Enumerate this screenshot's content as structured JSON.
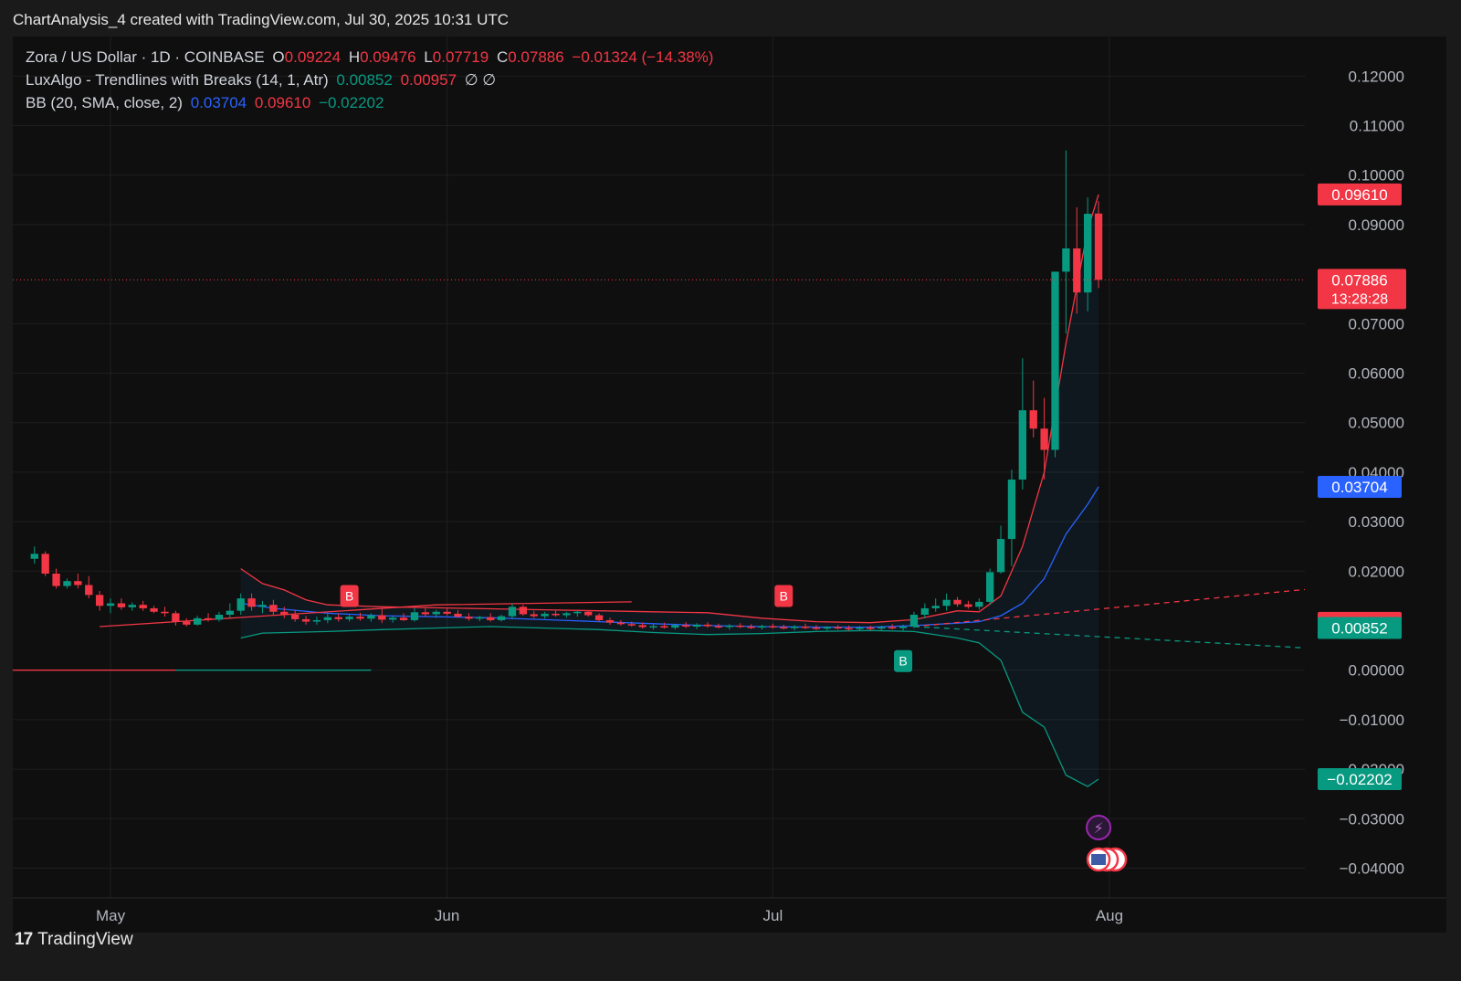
{
  "header": {
    "title": "ChartAnalysis_4 created with TradingView.com, Jul 30, 2025 10:31 UTC"
  },
  "legend": {
    "symbol": "Zora / US Dollar · 1D · COINBASE",
    "o_label": "O",
    "o": "0.09224",
    "h_label": "H",
    "h": "0.09476",
    "l_label": "L",
    "l": "0.07719",
    "c_label": "C",
    "c": "0.07886",
    "change": "−0.01324 (−14.38%)",
    "lux_name": "LuxAlgo - Trendlines with Breaks (14, 1, Atr)",
    "lux_v1": "0.00852",
    "lux_v2": "0.00957",
    "lux_sym": "∅ ∅",
    "bb_name": "BB (20, SMA, close, 2)",
    "bb_basis": "0.03704",
    "bb_upper": "0.09610",
    "bb_lower": "−0.02202"
  },
  "footer": {
    "brand": "TradingView"
  },
  "colors": {
    "up": "#089981",
    "down": "#f23645",
    "basis": "#2962ff",
    "bg": "#0f0f0f"
  },
  "chart_data": {
    "type": "candlestick",
    "y_ticks": [
      "0.12000",
      "0.11000",
      "0.10000",
      "0.09000",
      "0.07000",
      "0.06000",
      "0.05000",
      "0.04000",
      "0.03000",
      "0.02000",
      "0.00000",
      "−0.01000",
      "−0.02000",
      "−0.03000",
      "−0.04000"
    ],
    "y_tick_values": [
      0.12,
      0.11,
      0.1,
      0.09,
      0.07,
      0.06,
      0.05,
      0.04,
      0.03,
      0.02,
      0.0,
      -0.01,
      -0.02,
      -0.03,
      -0.04
    ],
    "ylim": [
      -0.046,
      0.128
    ],
    "x_ticks": [
      "May",
      "Jun",
      "Jul",
      "Aug"
    ],
    "x_tick_days": [
      0,
      31,
      61,
      92
    ],
    "xlim_days": [
      -9,
      110
    ],
    "candles": [
      {
        "d": -7,
        "o": 0.0225,
        "h": 0.025,
        "l": 0.0215,
        "c": 0.0235
      },
      {
        "d": -6,
        "o": 0.0235,
        "h": 0.024,
        "l": 0.019,
        "c": 0.0195
      },
      {
        "d": -5,
        "o": 0.0195,
        "h": 0.0205,
        "l": 0.0165,
        "c": 0.017
      },
      {
        "d": -4,
        "o": 0.017,
        "h": 0.0185,
        "l": 0.0165,
        "c": 0.018
      },
      {
        "d": -3,
        "o": 0.018,
        "h": 0.0195,
        "l": 0.0165,
        "c": 0.0172
      },
      {
        "d": -2,
        "o": 0.0172,
        "h": 0.019,
        "l": 0.0145,
        "c": 0.0152
      },
      {
        "d": -1,
        "o": 0.0152,
        "h": 0.016,
        "l": 0.012,
        "c": 0.013
      },
      {
        "d": 0,
        "o": 0.013,
        "h": 0.0145,
        "l": 0.0115,
        "c": 0.0135
      },
      {
        "d": 1,
        "o": 0.0135,
        "h": 0.0145,
        "l": 0.0122,
        "c": 0.0127
      },
      {
        "d": 2,
        "o": 0.0127,
        "h": 0.0137,
        "l": 0.012,
        "c": 0.0132
      },
      {
        "d": 3,
        "o": 0.0132,
        "h": 0.014,
        "l": 0.012,
        "c": 0.0125
      },
      {
        "d": 4,
        "o": 0.0125,
        "h": 0.013,
        "l": 0.0115,
        "c": 0.0118
      },
      {
        "d": 5,
        "o": 0.0118,
        "h": 0.0128,
        "l": 0.0108,
        "c": 0.0115
      },
      {
        "d": 6,
        "o": 0.0115,
        "h": 0.012,
        "l": 0.009,
        "c": 0.0098
      },
      {
        "d": 7,
        "o": 0.0098,
        "h": 0.0105,
        "l": 0.0088,
        "c": 0.0092
      },
      {
        "d": 8,
        "o": 0.0092,
        "h": 0.011,
        "l": 0.009,
        "c": 0.0105
      },
      {
        "d": 9,
        "o": 0.0105,
        "h": 0.0115,
        "l": 0.0098,
        "c": 0.0102
      },
      {
        "d": 10,
        "o": 0.0102,
        "h": 0.0118,
        "l": 0.0098,
        "c": 0.0112
      },
      {
        "d": 11,
        "o": 0.0112,
        "h": 0.0135,
        "l": 0.0105,
        "c": 0.012
      },
      {
        "d": 12,
        "o": 0.012,
        "h": 0.0155,
        "l": 0.0112,
        "c": 0.0145
      },
      {
        "d": 13,
        "o": 0.0145,
        "h": 0.0155,
        "l": 0.012,
        "c": 0.0128
      },
      {
        "d": 14,
        "o": 0.0128,
        "h": 0.014,
        "l": 0.0115,
        "c": 0.0132
      },
      {
        "d": 15,
        "o": 0.0132,
        "h": 0.0142,
        "l": 0.0112,
        "c": 0.0118
      },
      {
        "d": 16,
        "o": 0.0118,
        "h": 0.0128,
        "l": 0.0105,
        "c": 0.0112
      },
      {
        "d": 17,
        "o": 0.0112,
        "h": 0.0122,
        "l": 0.0098,
        "c": 0.0103
      },
      {
        "d": 18,
        "o": 0.0103,
        "h": 0.011,
        "l": 0.0092,
        "c": 0.0098
      },
      {
        "d": 19,
        "o": 0.0098,
        "h": 0.0108,
        "l": 0.0092,
        "c": 0.0101
      },
      {
        "d": 20,
        "o": 0.0101,
        "h": 0.0115,
        "l": 0.0095,
        "c": 0.0107
      },
      {
        "d": 21,
        "o": 0.0107,
        "h": 0.0115,
        "l": 0.0098,
        "c": 0.0103
      },
      {
        "d": 22,
        "o": 0.0103,
        "h": 0.0112,
        "l": 0.0098,
        "c": 0.0108
      },
      {
        "d": 23,
        "o": 0.0108,
        "h": 0.0116,
        "l": 0.01,
        "c": 0.0104
      },
      {
        "d": 24,
        "o": 0.0104,
        "h": 0.0115,
        "l": 0.0098,
        "c": 0.0111
      },
      {
        "d": 25,
        "o": 0.0111,
        "h": 0.0125,
        "l": 0.0095,
        "c": 0.0102
      },
      {
        "d": 26,
        "o": 0.0102,
        "h": 0.011,
        "l": 0.0096,
        "c": 0.0106
      },
      {
        "d": 27,
        "o": 0.0106,
        "h": 0.0115,
        "l": 0.0099,
        "c": 0.0101
      },
      {
        "d": 28,
        "o": 0.0101,
        "h": 0.0125,
        "l": 0.0098,
        "c": 0.0117
      },
      {
        "d": 29,
        "o": 0.0117,
        "h": 0.0125,
        "l": 0.0108,
        "c": 0.0113
      },
      {
        "d": 30,
        "o": 0.0113,
        "h": 0.0122,
        "l": 0.0106,
        "c": 0.0118
      },
      {
        "d": 31,
        "o": 0.0118,
        "h": 0.0124,
        "l": 0.011,
        "c": 0.0114
      },
      {
        "d": 32,
        "o": 0.0114,
        "h": 0.0121,
        "l": 0.0106,
        "c": 0.0108
      },
      {
        "d": 33,
        "o": 0.0108,
        "h": 0.0115,
        "l": 0.01,
        "c": 0.0104
      },
      {
        "d": 34,
        "o": 0.0104,
        "h": 0.011,
        "l": 0.0099,
        "c": 0.0107
      },
      {
        "d": 35,
        "o": 0.0107,
        "h": 0.0115,
        "l": 0.0098,
        "c": 0.0101
      },
      {
        "d": 36,
        "o": 0.0101,
        "h": 0.0112,
        "l": 0.0098,
        "c": 0.0109
      },
      {
        "d": 37,
        "o": 0.0109,
        "h": 0.0135,
        "l": 0.0103,
        "c": 0.0128
      },
      {
        "d": 38,
        "o": 0.0128,
        "h": 0.0132,
        "l": 0.011,
        "c": 0.0113
      },
      {
        "d": 39,
        "o": 0.0113,
        "h": 0.012,
        "l": 0.0105,
        "c": 0.0109
      },
      {
        "d": 40,
        "o": 0.0109,
        "h": 0.0118,
        "l": 0.0104,
        "c": 0.0114
      },
      {
        "d": 41,
        "o": 0.0114,
        "h": 0.0122,
        "l": 0.0108,
        "c": 0.0111
      },
      {
        "d": 42,
        "o": 0.0111,
        "h": 0.0118,
        "l": 0.0106,
        "c": 0.0115
      },
      {
        "d": 43,
        "o": 0.0115,
        "h": 0.0122,
        "l": 0.0108,
        "c": 0.0118
      },
      {
        "d": 44,
        "o": 0.0118,
        "h": 0.0121,
        "l": 0.0108,
        "c": 0.0111
      },
      {
        "d": 45,
        "o": 0.0111,
        "h": 0.0115,
        "l": 0.0098,
        "c": 0.0101
      },
      {
        "d": 46,
        "o": 0.0101,
        "h": 0.0106,
        "l": 0.0092,
        "c": 0.0096
      },
      {
        "d": 47,
        "o": 0.0096,
        "h": 0.0101,
        "l": 0.009,
        "c": 0.0093
      },
      {
        "d": 48,
        "o": 0.0093,
        "h": 0.0098,
        "l": 0.0088,
        "c": 0.0091
      },
      {
        "d": 49,
        "o": 0.0091,
        "h": 0.0096,
        "l": 0.0084,
        "c": 0.0087
      },
      {
        "d": 50,
        "o": 0.0087,
        "h": 0.0093,
        "l": 0.0082,
        "c": 0.0089
      },
      {
        "d": 51,
        "o": 0.0089,
        "h": 0.0096,
        "l": 0.0084,
        "c": 0.0086
      },
      {
        "d": 52,
        "o": 0.0086,
        "h": 0.0094,
        "l": 0.0082,
        "c": 0.0091
      },
      {
        "d": 53,
        "o": 0.0091,
        "h": 0.0097,
        "l": 0.0085,
        "c": 0.0088
      },
      {
        "d": 54,
        "o": 0.0088,
        "h": 0.0095,
        "l": 0.0083,
        "c": 0.0092
      },
      {
        "d": 55,
        "o": 0.0092,
        "h": 0.0097,
        "l": 0.0086,
        "c": 0.0089
      },
      {
        "d": 56,
        "o": 0.0089,
        "h": 0.0094,
        "l": 0.0084,
        "c": 0.0087
      },
      {
        "d": 57,
        "o": 0.0087,
        "h": 0.0093,
        "l": 0.0082,
        "c": 0.009
      },
      {
        "d": 58,
        "o": 0.009,
        "h": 0.0095,
        "l": 0.0085,
        "c": 0.0088
      },
      {
        "d": 59,
        "o": 0.0088,
        "h": 0.0093,
        "l": 0.0083,
        "c": 0.0086
      },
      {
        "d": 60,
        "o": 0.0086,
        "h": 0.0092,
        "l": 0.0082,
        "c": 0.0089
      },
      {
        "d": 61,
        "o": 0.0089,
        "h": 0.0094,
        "l": 0.0084,
        "c": 0.0087
      },
      {
        "d": 62,
        "o": 0.0087,
        "h": 0.0092,
        "l": 0.0082,
        "c": 0.0085
      },
      {
        "d": 63,
        "o": 0.0085,
        "h": 0.0091,
        "l": 0.008,
        "c": 0.0088
      },
      {
        "d": 64,
        "o": 0.0088,
        "h": 0.0094,
        "l": 0.0083,
        "c": 0.0086
      },
      {
        "d": 65,
        "o": 0.0086,
        "h": 0.0091,
        "l": 0.0081,
        "c": 0.0084
      },
      {
        "d": 66,
        "o": 0.0084,
        "h": 0.0089,
        "l": 0.008,
        "c": 0.0087
      },
      {
        "d": 67,
        "o": 0.0087,
        "h": 0.0091,
        "l": 0.0082,
        "c": 0.0085
      },
      {
        "d": 68,
        "o": 0.0085,
        "h": 0.009,
        "l": 0.008,
        "c": 0.0083
      },
      {
        "d": 69,
        "o": 0.0083,
        "h": 0.0089,
        "l": 0.0079,
        "c": 0.0086
      },
      {
        "d": 70,
        "o": 0.0086,
        "h": 0.009,
        "l": 0.0081,
        "c": 0.0084
      },
      {
        "d": 71,
        "o": 0.0084,
        "h": 0.009,
        "l": 0.008,
        "c": 0.0087
      },
      {
        "d": 72,
        "o": 0.0087,
        "h": 0.0093,
        "l": 0.0082,
        "c": 0.0085
      },
      {
        "d": 73,
        "o": 0.0085,
        "h": 0.0092,
        "l": 0.008,
        "c": 0.0088
      },
      {
        "d": 74,
        "o": 0.0088,
        "h": 0.0118,
        "l": 0.0085,
        "c": 0.0112
      },
      {
        "d": 75,
        "o": 0.0112,
        "h": 0.0135,
        "l": 0.0105,
        "c": 0.0125
      },
      {
        "d": 76,
        "o": 0.0125,
        "h": 0.0145,
        "l": 0.0118,
        "c": 0.013
      },
      {
        "d": 77,
        "o": 0.013,
        "h": 0.0155,
        "l": 0.012,
        "c": 0.0142
      },
      {
        "d": 78,
        "o": 0.0142,
        "h": 0.0148,
        "l": 0.0128,
        "c": 0.0133
      },
      {
        "d": 79,
        "o": 0.0133,
        "h": 0.014,
        "l": 0.0124,
        "c": 0.0128
      },
      {
        "d": 80,
        "o": 0.0128,
        "h": 0.0145,
        "l": 0.0122,
        "c": 0.0138
      },
      {
        "d": 81,
        "o": 0.0138,
        "h": 0.0205,
        "l": 0.0132,
        "c": 0.0198
      },
      {
        "d": 82,
        "o": 0.0198,
        "h": 0.0292,
        "l": 0.0195,
        "c": 0.0265
      },
      {
        "d": 83,
        "o": 0.0265,
        "h": 0.0405,
        "l": 0.021,
        "c": 0.0385
      },
      {
        "d": 84,
        "o": 0.0385,
        "h": 0.063,
        "l": 0.0365,
        "c": 0.0525
      },
      {
        "d": 85,
        "o": 0.0525,
        "h": 0.0585,
        "l": 0.047,
        "c": 0.0488
      },
      {
        "d": 86,
        "o": 0.0488,
        "h": 0.055,
        "l": 0.0385,
        "c": 0.0445
      },
      {
        "d": 87,
        "o": 0.0445,
        "h": 0.0805,
        "l": 0.043,
        "c": 0.0805
      },
      {
        "d": 88,
        "o": 0.0805,
        "h": 0.105,
        "l": 0.068,
        "c": 0.0852
      },
      {
        "d": 89,
        "o": 0.0852,
        "h": 0.0935,
        "l": 0.072,
        "c": 0.0763
      },
      {
        "d": 90,
        "o": 0.0763,
        "h": 0.0955,
        "l": 0.0725,
        "c": 0.0922
      },
      {
        "d": 91,
        "o": 0.09224,
        "h": 0.09476,
        "l": 0.07719,
        "c": 0.07886
      }
    ],
    "bb_upper_pts": [
      [
        12,
        0.0205
      ],
      [
        14,
        0.0175
      ],
      [
        16,
        0.0162
      ],
      [
        18,
        0.0142
      ],
      [
        20,
        0.0132
      ],
      [
        25,
        0.0128
      ],
      [
        30,
        0.0126
      ],
      [
        35,
        0.0124
      ],
      [
        40,
        0.0122
      ],
      [
        45,
        0.012
      ],
      [
        50,
        0.0118
      ],
      [
        55,
        0.0116
      ],
      [
        60,
        0.0105
      ],
      [
        65,
        0.0098
      ],
      [
        70,
        0.0096
      ],
      [
        74,
        0.0102
      ],
      [
        78,
        0.012
      ],
      [
        80,
        0.0118
      ],
      [
        82,
        0.015
      ],
      [
        84,
        0.025
      ],
      [
        86,
        0.04
      ],
      [
        88,
        0.066
      ],
      [
        90,
        0.089
      ],
      [
        91,
        0.0961
      ]
    ],
    "bb_basis_pts": [
      [
        12,
        0.0135
      ],
      [
        15,
        0.0125
      ],
      [
        20,
        0.0115
      ],
      [
        25,
        0.011
      ],
      [
        30,
        0.0108
      ],
      [
        35,
        0.0106
      ],
      [
        40,
        0.0102
      ],
      [
        45,
        0.0098
      ],
      [
        50,
        0.0094
      ],
      [
        55,
        0.009
      ],
      [
        60,
        0.0088
      ],
      [
        65,
        0.0087
      ],
      [
        70,
        0.0087
      ],
      [
        74,
        0.009
      ],
      [
        78,
        0.0095
      ],
      [
        80,
        0.0098
      ],
      [
        82,
        0.011
      ],
      [
        84,
        0.0135
      ],
      [
        86,
        0.0185
      ],
      [
        88,
        0.0275
      ],
      [
        90,
        0.0335
      ],
      [
        91,
        0.03704
      ]
    ],
    "bb_lower_pts": [
      [
        12,
        0.0065
      ],
      [
        14,
        0.0075
      ],
      [
        20,
        0.0078
      ],
      [
        25,
        0.0082
      ],
      [
        30,
        0.0085
      ],
      [
        35,
        0.0088
      ],
      [
        40,
        0.0085
      ],
      [
        45,
        0.0082
      ],
      [
        50,
        0.0076
      ],
      [
        55,
        0.0072
      ],
      [
        60,
        0.0074
      ],
      [
        65,
        0.0078
      ],
      [
        70,
        0.008
      ],
      [
        74,
        0.0078
      ],
      [
        78,
        0.0065
      ],
      [
        80,
        0.0055
      ],
      [
        82,
        0.002
      ],
      [
        84,
        -0.0085
      ],
      [
        86,
        -0.0115
      ],
      [
        88,
        -0.0212
      ],
      [
        90,
        -0.0235
      ],
      [
        91,
        -0.02202
      ]
    ],
    "trend_up_line": [
      [
        -1,
        0.0088
      ],
      [
        30,
        0.0132
      ],
      [
        48,
        0.0138
      ]
    ],
    "trend_dn_line": [
      [
        0,
        0.0075
      ],
      [
        26,
        0.0075
      ]
    ],
    "flat_red_segment": [
      [
        -9,
        0.0
      ],
      [
        6,
        0.0
      ]
    ],
    "flat_green_segment": [
      [
        6,
        0.0
      ],
      [
        24,
        0.0
      ]
    ],
    "dashed_red": [
      [
        74,
        0.0088
      ],
      [
        110,
        0.0163
      ]
    ],
    "dashed_green": [
      [
        74,
        0.0088
      ],
      [
        110,
        0.0045
      ]
    ],
    "break_markers": [
      {
        "d": 22,
        "label": "B",
        "kind": "down"
      },
      {
        "d": 62,
        "label": "B",
        "kind": "down"
      },
      {
        "d": 73,
        "label": "B",
        "kind": "up"
      }
    ],
    "price_tags": [
      {
        "label": "0.09610",
        "value": 0.0961,
        "color": "#f23645"
      },
      {
        "label": "0.07886",
        "sub": "13:28:28",
        "value": 0.07886,
        "color": "#f23645"
      },
      {
        "label": "0.03704",
        "value": 0.03704,
        "color": "#2962ff"
      },
      {
        "label": "0.00957",
        "value": 0.00957,
        "color": "#f23645"
      },
      {
        "label": "0.00852",
        "value": 0.00852,
        "color": "#089981"
      },
      {
        "label": "−0.02202",
        "value": -0.02202,
        "color": "#089981"
      }
    ],
    "last_price": 0.07886,
    "event_icons": [
      "lightning-icon",
      "us-flag-icon"
    ]
  }
}
